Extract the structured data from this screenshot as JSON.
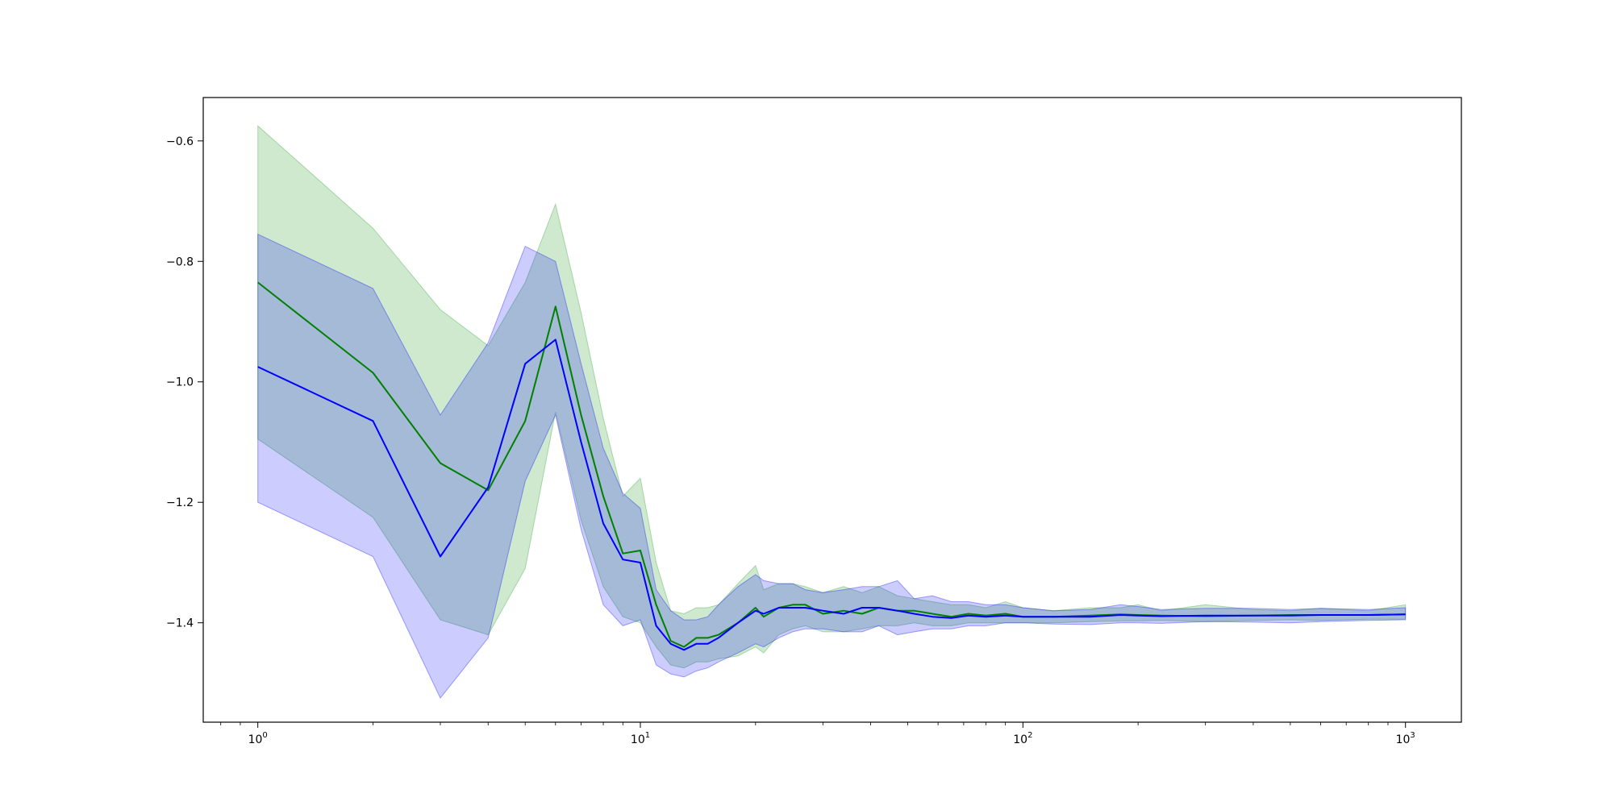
{
  "chart_data": {
    "type": "line",
    "title": "",
    "xlabel": "",
    "ylabel": "",
    "xscale": "log",
    "xlim": [
      0.72,
      1400
    ],
    "ylim": [
      -1.565,
      -0.528
    ],
    "grid": false,
    "legend": "none",
    "y_ticks": [
      {
        "value": -0.6,
        "label": "−0.6"
      },
      {
        "value": -0.8,
        "label": "−0.8"
      },
      {
        "value": -1.0,
        "label": "−1.0"
      },
      {
        "value": -1.2,
        "label": "−1.2"
      },
      {
        "value": -1.4,
        "label": "−1.4"
      }
    ],
    "x_ticks": [
      {
        "value": 1,
        "base": "10",
        "exp": "0"
      },
      {
        "value": 10,
        "base": "10",
        "exp": "1"
      },
      {
        "value": 100,
        "base": "10",
        "exp": "2"
      },
      {
        "value": 1000,
        "base": "10",
        "exp": "3"
      }
    ],
    "series": [
      {
        "color": "#008000",
        "band_color": "#2ca02c",
        "band_opacity": 0.23,
        "x": [
          1,
          2,
          3,
          4,
          5,
          6,
          7,
          8,
          9,
          10,
          11,
          12,
          13,
          14,
          15,
          16,
          18,
          20,
          21,
          23,
          25,
          27,
          30,
          34,
          38,
          42,
          47,
          52,
          58,
          65,
          72,
          80,
          90,
          100,
          120,
          150,
          180,
          200,
          230,
          300,
          400,
          500,
          600,
          800,
          1000
        ],
        "y": [
          -0.835,
          -0.985,
          -1.135,
          -1.18,
          -1.065,
          -0.875,
          -1.055,
          -1.19,
          -1.285,
          -1.28,
          -1.37,
          -1.43,
          -1.44,
          -1.425,
          -1.425,
          -1.42,
          -1.4,
          -1.375,
          -1.39,
          -1.375,
          -1.37,
          -1.37,
          -1.385,
          -1.38,
          -1.385,
          -1.375,
          -1.38,
          -1.38,
          -1.385,
          -1.39,
          -1.385,
          -1.388,
          -1.385,
          -1.39,
          -1.39,
          -1.388,
          -1.386,
          -1.387,
          -1.388,
          -1.389,
          -1.388,
          -1.387,
          -1.387,
          -1.387,
          -1.386
        ],
        "upper": [
          -0.575,
          -0.745,
          -0.88,
          -0.94,
          -0.835,
          -0.705,
          -0.885,
          -1.06,
          -1.19,
          -1.16,
          -1.3,
          -1.38,
          -1.385,
          -1.375,
          -1.375,
          -1.37,
          -1.335,
          -1.305,
          -1.345,
          -1.335,
          -1.335,
          -1.34,
          -1.35,
          -1.34,
          -1.35,
          -1.34,
          -1.355,
          -1.36,
          -1.365,
          -1.37,
          -1.37,
          -1.375,
          -1.365,
          -1.375,
          -1.38,
          -1.375,
          -1.375,
          -1.37,
          -1.38,
          -1.37,
          -1.378,
          -1.38,
          -1.376,
          -1.38,
          -1.37
        ],
        "lower": [
          -1.095,
          -1.225,
          -1.395,
          -1.42,
          -1.31,
          -1.05,
          -1.23,
          -1.34,
          -1.39,
          -1.4,
          -1.44,
          -1.47,
          -1.475,
          -1.465,
          -1.465,
          -1.46,
          -1.455,
          -1.44,
          -1.45,
          -1.42,
          -1.41,
          -1.405,
          -1.415,
          -1.415,
          -1.41,
          -1.405,
          -1.405,
          -1.4,
          -1.405,
          -1.405,
          -1.4,
          -1.4,
          -1.4,
          -1.4,
          -1.4,
          -1.398,
          -1.397,
          -1.397,
          -1.396,
          -1.398,
          -1.396,
          -1.395,
          -1.396,
          -1.394,
          -1.394
        ]
      },
      {
        "color": "#0000ff",
        "band_color": "#0000ff",
        "band_opacity": 0.2,
        "x": [
          1,
          2,
          3,
          4,
          5,
          6,
          7,
          8,
          9,
          10,
          11,
          12,
          13,
          14,
          15,
          16,
          18,
          20,
          21,
          23,
          25,
          27,
          30,
          34,
          38,
          42,
          47,
          52,
          58,
          65,
          72,
          80,
          90,
          100,
          120,
          150,
          180,
          200,
          230,
          300,
          400,
          500,
          600,
          800,
          1000
        ],
        "y": [
          -0.975,
          -1.065,
          -1.29,
          -1.175,
          -0.97,
          -0.93,
          -1.1,
          -1.235,
          -1.295,
          -1.3,
          -1.405,
          -1.435,
          -1.445,
          -1.435,
          -1.435,
          -1.425,
          -1.4,
          -1.38,
          -1.385,
          -1.375,
          -1.375,
          -1.375,
          -1.38,
          -1.385,
          -1.375,
          -1.375,
          -1.38,
          -1.385,
          -1.39,
          -1.392,
          -1.388,
          -1.39,
          -1.388,
          -1.39,
          -1.39,
          -1.39,
          -1.387,
          -1.388,
          -1.389,
          -1.388,
          -1.388,
          -1.388,
          -1.387,
          -1.387,
          -1.386
        ],
        "upper": [
          -0.755,
          -0.845,
          -1.055,
          -0.935,
          -0.775,
          -0.8,
          -0.97,
          -1.11,
          -1.185,
          -1.21,
          -1.345,
          -1.38,
          -1.395,
          -1.395,
          -1.39,
          -1.37,
          -1.34,
          -1.32,
          -1.33,
          -1.335,
          -1.335,
          -1.345,
          -1.35,
          -1.345,
          -1.34,
          -1.34,
          -1.33,
          -1.36,
          -1.355,
          -1.365,
          -1.365,
          -1.37,
          -1.37,
          -1.375,
          -1.38,
          -1.378,
          -1.37,
          -1.373,
          -1.378,
          -1.376,
          -1.376,
          -1.378,
          -1.376,
          -1.378,
          -1.375
        ],
        "lower": [
          -1.2,
          -1.29,
          -1.525,
          -1.425,
          -1.165,
          -1.055,
          -1.245,
          -1.37,
          -1.405,
          -1.395,
          -1.47,
          -1.485,
          -1.49,
          -1.48,
          -1.475,
          -1.465,
          -1.45,
          -1.435,
          -1.44,
          -1.425,
          -1.415,
          -1.41,
          -1.41,
          -1.415,
          -1.415,
          -1.405,
          -1.42,
          -1.415,
          -1.41,
          -1.41,
          -1.405,
          -1.405,
          -1.4,
          -1.4,
          -1.402,
          -1.403,
          -1.4,
          -1.4,
          -1.401,
          -1.398,
          -1.399,
          -1.4,
          -1.398,
          -1.396,
          -1.395
        ]
      }
    ]
  }
}
